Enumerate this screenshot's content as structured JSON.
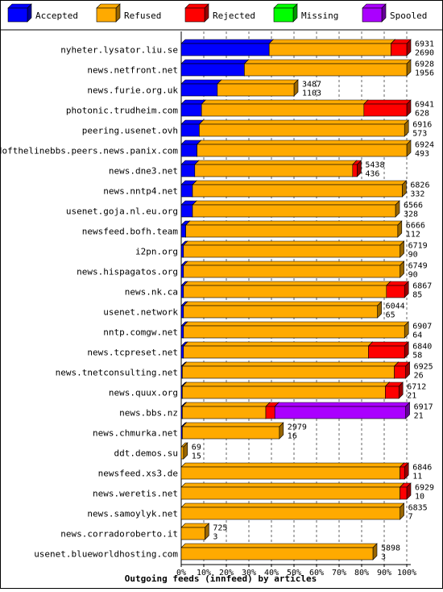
{
  "colors": {
    "accepted": "#0000ff",
    "refused": "#ffaa00",
    "rejected": "#ff0000",
    "missing": "#00ff00",
    "spooled": "#aa00ff",
    "background": "#ffffff",
    "grid": "#000000"
  },
  "legend": [
    {
      "key": "accepted",
      "label": "Accepted"
    },
    {
      "key": "refused",
      "label": "Refused"
    },
    {
      "key": "rejected",
      "label": "Rejected"
    },
    {
      "key": "missing",
      "label": "Missing"
    },
    {
      "key": "spooled",
      "label": "Spooled"
    }
  ],
  "chart_data": {
    "type": "bar",
    "orientation": "horizontal",
    "stacked": true,
    "unit": "percent",
    "xlabel": "Outgoing feeds (innfeed) by articles",
    "xlim": [
      0,
      100
    ],
    "xticks": [
      "0%",
      "10%",
      "20%",
      "30%",
      "40%",
      "50%",
      "60%",
      "70%",
      "80%",
      "90%",
      "100%"
    ],
    "grid": "vertical dashed",
    "legend_position": "top",
    "series_order": [
      "accepted",
      "refused",
      "rejected",
      "missing",
      "spooled"
    ],
    "rows": [
      {
        "name": "nyheter.lysator.liu.se",
        "total": "6931",
        "accepted_count": "2690",
        "accepted": 39,
        "refused": 54,
        "rejected": 7,
        "missing": 0,
        "spooled": 0
      },
      {
        "name": "news.netfront.net",
        "total": "6928",
        "accepted_count": "1956",
        "accepted": 28,
        "refused": 72,
        "rejected": 0,
        "missing": 0,
        "spooled": 0
      },
      {
        "name": "news.furie.org.uk",
        "total": "3487",
        "accepted_count": "1103",
        "accepted": 16,
        "refused": 34,
        "rejected": 0,
        "missing": 0,
        "spooled": 0
      },
      {
        "name": "photonic.trudheim.com",
        "total": "6941",
        "accepted_count": "628",
        "accepted": 9,
        "refused": 72,
        "rejected": 19,
        "missing": 0,
        "spooled": 0
      },
      {
        "name": "peering.usenet.ovh",
        "total": "6916",
        "accepted_count": "573",
        "accepted": 8,
        "refused": 91,
        "rejected": 0,
        "missing": 0,
        "spooled": 0
      },
      {
        "name": "endofthelinebbs.peers.news.panix.com",
        "total": "6924",
        "accepted_count": "493",
        "accepted": 7,
        "refused": 93,
        "rejected": 0,
        "missing": 0,
        "spooled": 0
      },
      {
        "name": "news.dne3.net",
        "total": "5438",
        "accepted_count": "436",
        "accepted": 6,
        "refused": 70,
        "rejected": 2,
        "missing": 0,
        "spooled": 0
      },
      {
        "name": "news.nntp4.net",
        "total": "6826",
        "accepted_count": "332",
        "accepted": 5,
        "refused": 93,
        "rejected": 0,
        "missing": 0,
        "spooled": 0
      },
      {
        "name": "usenet.goja.nl.eu.org",
        "total": "6566",
        "accepted_count": "328",
        "accepted": 5,
        "refused": 90,
        "rejected": 0,
        "missing": 0,
        "spooled": 0
      },
      {
        "name": "newsfeed.bofh.team",
        "total": "6666",
        "accepted_count": "112",
        "accepted": 2,
        "refused": 94,
        "rejected": 0,
        "missing": 0,
        "spooled": 0
      },
      {
        "name": "i2pn.org",
        "total": "6719",
        "accepted_count": "90",
        "accepted": 1,
        "refused": 96,
        "rejected": 0,
        "missing": 0,
        "spooled": 0
      },
      {
        "name": "news.hispagatos.org",
        "total": "6749",
        "accepted_count": "90",
        "accepted": 1,
        "refused": 96,
        "rejected": 0,
        "missing": 0,
        "spooled": 0
      },
      {
        "name": "news.nk.ca",
        "total": "6867",
        "accepted_count": "85",
        "accepted": 1,
        "refused": 90,
        "rejected": 8,
        "missing": 0,
        "spooled": 0
      },
      {
        "name": "usenet.network",
        "total": "6044",
        "accepted_count": "65",
        "accepted": 1,
        "refused": 86,
        "rejected": 0,
        "missing": 0,
        "spooled": 0
      },
      {
        "name": "nntp.comgw.net",
        "total": "6907",
        "accepted_count": "64",
        "accepted": 1,
        "refused": 98,
        "rejected": 0,
        "missing": 0,
        "spooled": 0
      },
      {
        "name": "news.tcpreset.net",
        "total": "6840",
        "accepted_count": "58",
        "accepted": 1,
        "refused": 82,
        "rejected": 16,
        "missing": 0,
        "spooled": 0
      },
      {
        "name": "news.tnetconsulting.net",
        "total": "6925",
        "accepted_count": "26",
        "accepted": 0.5,
        "refused": 94,
        "rejected": 5,
        "missing": 0,
        "spooled": 0
      },
      {
        "name": "news.quux.org",
        "total": "6712",
        "accepted_count": "21",
        "accepted": 0.5,
        "refused": 90,
        "rejected": 6,
        "missing": 0,
        "spooled": 0
      },
      {
        "name": "news.bbs.nz",
        "total": "6917",
        "accepted_count": "21",
        "accepted": 0.5,
        "refused": 37,
        "rejected": 4,
        "missing": 0,
        "spooled": 58
      },
      {
        "name": "news.chmurka.net",
        "total": "2979",
        "accepted_count": "16",
        "accepted": 0.5,
        "refused": 43,
        "rejected": 0,
        "missing": 0,
        "spooled": 0
      },
      {
        "name": "ddt.demos.su",
        "total": "69",
        "accepted_count": "15",
        "accepted": 0,
        "refused": 1,
        "rejected": 0,
        "missing": 0,
        "spooled": 0
      },
      {
        "name": "newsfeed.xs3.de",
        "total": "6846",
        "accepted_count": "11",
        "accepted": 0,
        "refused": 97,
        "rejected": 2,
        "missing": 0,
        "spooled": 0
      },
      {
        "name": "news.weretis.net",
        "total": "6929",
        "accepted_count": "10",
        "accepted": 0,
        "refused": 97,
        "rejected": 3,
        "missing": 0,
        "spooled": 0
      },
      {
        "name": "news.samoylyk.net",
        "total": "6835",
        "accepted_count": "7",
        "accepted": 0,
        "refused": 97,
        "rejected": 0,
        "missing": 0,
        "spooled": 0
      },
      {
        "name": "news.corradoroberto.it",
        "total": "725",
        "accepted_count": "3",
        "accepted": 0,
        "refused": 10.5,
        "rejected": 0,
        "missing": 0,
        "spooled": 0
      },
      {
        "name": "usenet.blueworldhosting.com",
        "total": "5898",
        "accepted_count": "3",
        "accepted": 0,
        "refused": 85,
        "rejected": 0,
        "missing": 0,
        "spooled": 0
      }
    ]
  }
}
